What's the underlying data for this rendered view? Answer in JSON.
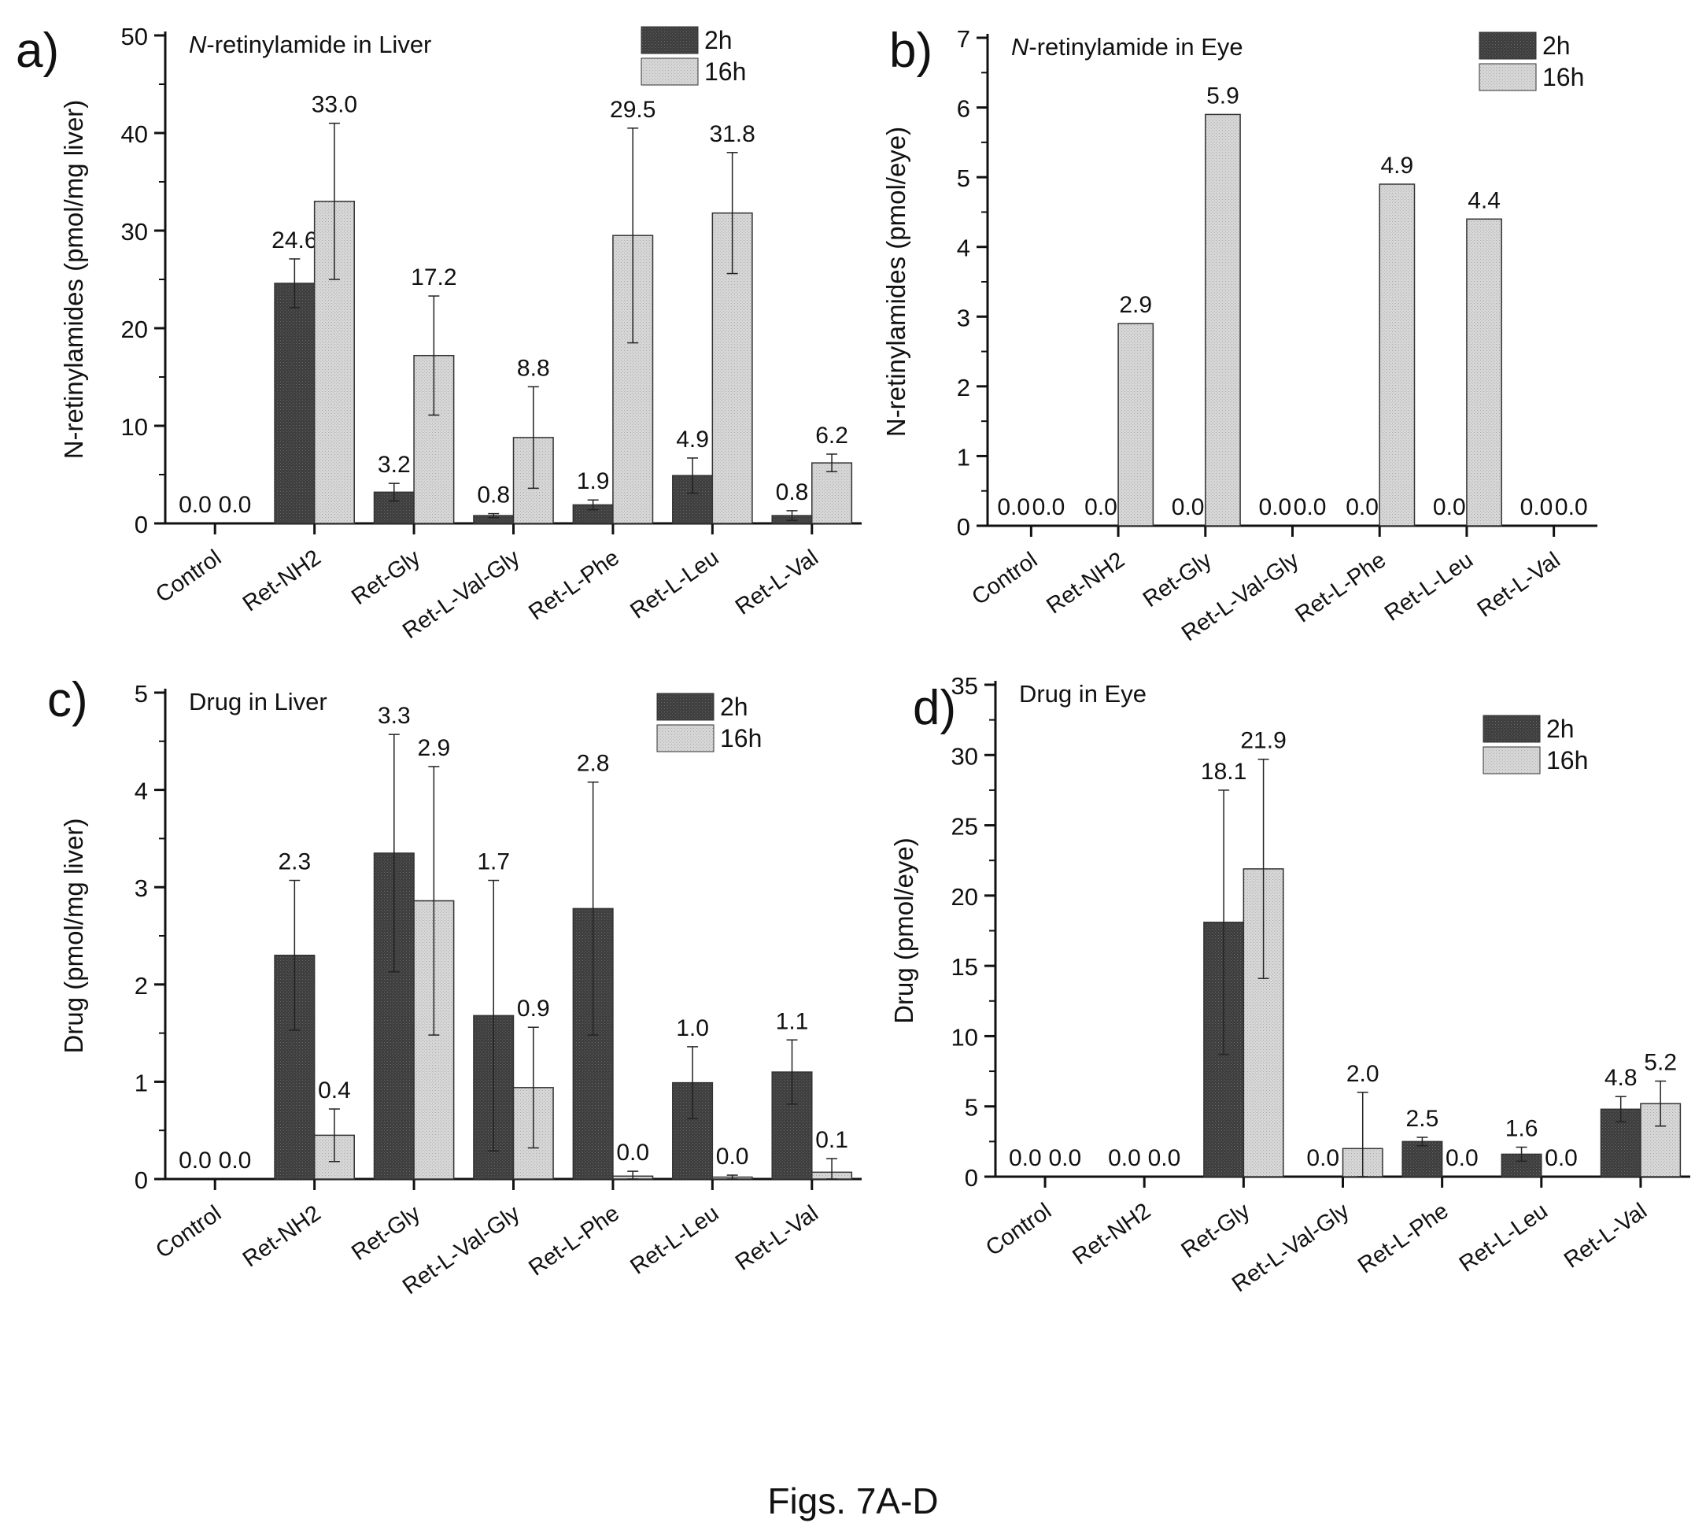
{
  "caption": "Figs. 7A-D",
  "chart_data": [
    {
      "type": "bar",
      "panel_label": "a)",
      "title_italic": "N",
      "title_rest": "-retinylamide in Liver",
      "ylabel": "N-retinylamides (pmol/mg liver)",
      "ylim": [
        0,
        50
      ],
      "yticks": [
        0,
        10,
        20,
        30,
        40,
        50
      ],
      "categories": [
        "Control",
        "Ret-NH2",
        "Ret-Gly",
        "Ret-L-Val-Gly",
        "Ret-L-Phe",
        "Ret-L-Leu",
        "Ret-L-Val"
      ],
      "series": [
        {
          "name": "2h",
          "color": "#3f3f3f",
          "values": [
            0,
            24.6,
            3.2,
            0.8,
            1.9,
            4.9,
            0.8
          ],
          "errors": [
            0,
            2.5,
            0.9,
            0.2,
            0.5,
            1.8,
            0.5
          ],
          "labels": [
            "0.0",
            "24.6",
            "3.2",
            "0.8",
            "1.9",
            "4.9",
            "0.8"
          ]
        },
        {
          "name": "16h",
          "color": "#d4d4d4",
          "values": [
            0,
            33.0,
            17.2,
            8.8,
            29.5,
            31.8,
            6.2
          ],
          "errors": [
            0,
            8.0,
            6.1,
            5.2,
            11.0,
            6.2,
            0.9
          ],
          "labels": [
            "0.0",
            "33.0",
            "17.2",
            "8.8",
            "29.5",
            "31.8",
            "6.2"
          ]
        }
      ]
    },
    {
      "type": "bar",
      "panel_label": "b)",
      "title_italic": "N",
      "title_rest": "-retinylamide in Eye",
      "ylabel": "N-retinylamides (pmol/eye)",
      "ylim": [
        0,
        7
      ],
      "yticks": [
        0,
        1,
        2,
        3,
        4,
        5,
        6,
        7
      ],
      "categories": [
        "Control",
        "Ret-NH2",
        "Ret-Gly",
        "Ret-L-Val-Gly",
        "Ret-L-Phe",
        "Ret-L-Leu",
        "Ret-L-Val"
      ],
      "series": [
        {
          "name": "2h",
          "color": "#3f3f3f",
          "values": [
            0,
            0,
            0,
            0,
            0,
            0,
            0
          ],
          "errors": [
            0,
            0,
            0,
            0,
            0,
            0,
            0
          ],
          "labels": [
            "0.0",
            "0.0",
            "0.0",
            "0.0",
            "0.0",
            "0.0",
            "0.0"
          ]
        },
        {
          "name": "16h",
          "color": "#d4d4d4",
          "values": [
            0,
            2.9,
            5.9,
            0,
            4.9,
            4.4,
            0
          ],
          "errors": [
            0,
            0,
            0,
            0,
            0,
            0,
            0
          ],
          "labels": [
            "0.0",
            "2.9",
            "5.9",
            "0.0",
            "4.9",
            "4.4",
            "0.0"
          ]
        }
      ]
    },
    {
      "type": "bar",
      "panel_label": "c)",
      "title_italic": "",
      "title_rest": "Drug in Liver",
      "ylabel": "Drug (pmol/mg liver)",
      "ylim": [
        0,
        5
      ],
      "yticks": [
        0,
        1,
        2,
        3,
        4,
        5
      ],
      "categories": [
        "Control",
        "Ret-NH2",
        "Ret-Gly",
        "Ret-L-Val-Gly",
        "Ret-L-Phe",
        "Ret-L-Leu",
        "Ret-L-Val"
      ],
      "series": [
        {
          "name": "2h",
          "color": "#3f3f3f",
          "values": [
            0,
            2.3,
            3.35,
            1.68,
            2.78,
            0.99,
            1.1
          ],
          "errors": [
            0,
            0.77,
            1.22,
            1.39,
            1.3,
            0.37,
            0.33
          ],
          "labels": [
            "0.0",
            "2.3",
            "3.3",
            "1.7",
            "2.8",
            "1.0",
            "1.1"
          ]
        },
        {
          "name": "16h",
          "color": "#d4d4d4",
          "values": [
            0,
            0.45,
            2.86,
            0.94,
            0.03,
            0.02,
            0.07
          ],
          "errors": [
            0,
            0.27,
            1.38,
            0.62,
            0.05,
            0.02,
            0.14
          ],
          "labels": [
            "0.0",
            "0.4",
            "2.9",
            "0.9",
            "0.0",
            "0.0",
            "0.1"
          ]
        }
      ]
    },
    {
      "type": "bar",
      "panel_label": "d)",
      "title_italic": "",
      "title_rest": "Drug in Eye",
      "ylabel": "Drug (pmol/eye)",
      "ylim": [
        0,
        35
      ],
      "yticks": [
        0,
        5,
        10,
        15,
        20,
        25,
        30,
        35
      ],
      "categories": [
        "Control",
        "Ret-NH2",
        "Ret-Gly",
        "Ret-L-Val-Gly",
        "Ret-L-Phe",
        "Ret-L-Leu",
        "Ret-L-Val"
      ],
      "series": [
        {
          "name": "2h",
          "color": "#3f3f3f",
          "values": [
            0,
            0,
            18.1,
            0,
            2.5,
            1.6,
            4.8
          ],
          "errors": [
            0,
            0,
            9.4,
            0,
            0.3,
            0.5,
            0.9
          ],
          "labels": [
            "0.0",
            "0.0",
            "18.1",
            "0.0",
            "2.5",
            "1.6",
            "4.8"
          ]
        },
        {
          "name": "16h",
          "color": "#d4d4d4",
          "values": [
            0,
            0,
            21.9,
            2.0,
            0,
            0,
            5.2
          ],
          "errors": [
            0,
            0,
            7.8,
            4.0,
            0,
            0,
            1.6
          ],
          "labels": [
            "0.0",
            "0.0",
            "21.9",
            "2.0",
            "0.0",
            "0.0",
            "5.2"
          ]
        }
      ]
    }
  ]
}
